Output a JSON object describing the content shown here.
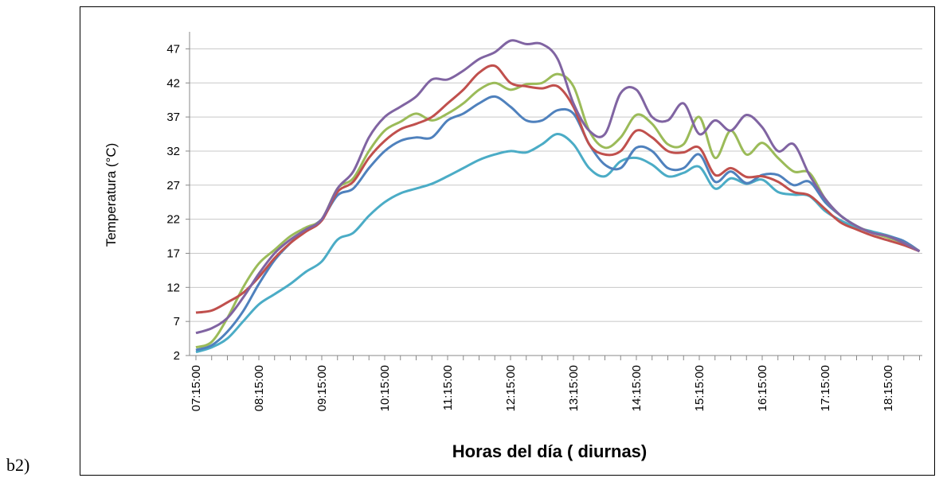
{
  "figure_label": "b2)",
  "chart_data": {
    "type": "line",
    "xlabel": "Horas del día ( diurnas)",
    "ylabel": "Temperatura (°C)",
    "categories": [
      "07:15:00",
      null,
      null,
      null,
      "08:15:00",
      null,
      null,
      null,
      "09:15:00",
      null,
      null,
      null,
      "10:15:00",
      null,
      null,
      null,
      "11:15:00",
      null,
      null,
      null,
      "12:15:00",
      null,
      null,
      null,
      "13:15:00",
      null,
      null,
      null,
      "14:15:00",
      null,
      null,
      null,
      "15:15:00",
      null,
      null,
      null,
      "16:15:00",
      null,
      null,
      null,
      "17:15:00",
      null,
      null,
      null,
      "18:15:00",
      null,
      null
    ],
    "ylim": [
      2,
      49.5
    ],
    "yticks": [
      2,
      7,
      12,
      17,
      22,
      27,
      32,
      37,
      42,
      47
    ],
    "grid": true,
    "series": [
      {
        "color": "#4bacc6",
        "values": [
          2.5,
          3.2,
          4.5,
          7,
          9.5,
          11,
          12.5,
          14.3,
          15.8,
          19,
          20,
          22.5,
          24.5,
          25.8,
          26.5,
          27.2,
          28.3,
          29.5,
          30.7,
          31.5,
          32,
          31.8,
          33,
          34.5,
          33,
          29.5,
          28.3,
          30.5,
          31,
          30,
          28.3,
          28.8,
          29.7,
          26.5,
          28,
          27.2,
          27.8,
          26,
          25.6,
          25.4,
          23.2,
          21.8,
          20.8,
          20.2,
          19.6,
          18.8,
          null
        ]
      },
      {
        "color": "#4f81bd",
        "values": [
          2.8,
          3.5,
          5.5,
          8.5,
          12.5,
          16,
          18.5,
          20.5,
          22,
          25.5,
          26.5,
          29.5,
          32,
          33.5,
          34,
          34,
          36.5,
          37.5,
          39,
          40,
          38.5,
          36.5,
          36.5,
          38,
          37.5,
          33,
          30,
          29.5,
          32.5,
          32,
          29.5,
          29.5,
          31.5,
          27.5,
          29,
          27.3,
          28.5,
          28.5,
          27,
          27.5,
          24.5,
          22.5,
          21,
          20,
          19.5,
          18.8,
          17.3
        ]
      },
      {
        "color": "#9bbb59",
        "values": [
          3.2,
          4,
          7.5,
          12,
          15.5,
          17.5,
          19.5,
          20.8,
          22,
          26.5,
          28,
          32,
          35,
          36.3,
          37.5,
          36.5,
          37.5,
          39,
          41,
          42,
          41,
          41.8,
          42,
          43.3,
          41.5,
          35,
          32.5,
          34,
          37.3,
          36,
          33,
          33,
          37,
          31,
          35,
          31.5,
          33.2,
          31,
          29,
          28.8,
          25,
          22.5,
          21,
          20,
          19.3,
          18.5,
          17.3
        ]
      },
      {
        "color": "#c0504d",
        "values": [
          8.3,
          8.6,
          9.8,
          11.2,
          13.5,
          16.3,
          18.5,
          20.2,
          21.8,
          26,
          27.5,
          31,
          33.5,
          35.2,
          36,
          37,
          39,
          41,
          43.5,
          44.5,
          42,
          41.5,
          41.2,
          41.5,
          38.5,
          33,
          31.5,
          32,
          35,
          34,
          32,
          31.8,
          32.5,
          28.5,
          29.5,
          28.2,
          28.3,
          27.5,
          26,
          25.5,
          23.5,
          21.5,
          20.5,
          19.6,
          18.9,
          18.2,
          17.3
        ]
      },
      {
        "color": "#8064a2",
        "values": [
          5.3,
          6,
          7.5,
          10.5,
          14,
          17,
          19,
          20.5,
          22,
          26.5,
          29,
          34,
          37,
          38.5,
          40,
          42.5,
          42.5,
          43.8,
          45.5,
          46.5,
          48.2,
          47.7,
          47.7,
          45.5,
          39,
          35,
          34.5,
          40.5,
          41,
          37,
          36.5,
          39,
          34.5,
          36.5,
          35,
          37.3,
          35.5,
          32,
          33,
          28.5,
          25,
          22.5,
          21,
          20,
          19.5,
          18.5,
          17.3
        ]
      }
    ]
  }
}
